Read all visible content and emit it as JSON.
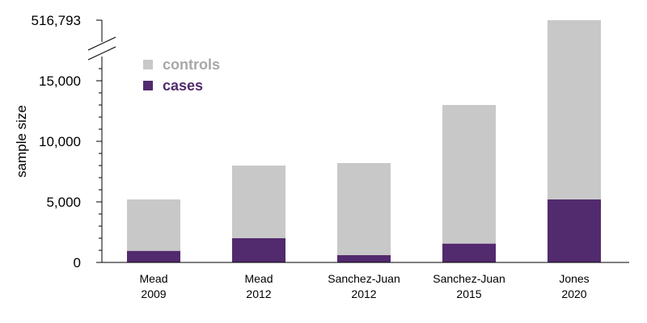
{
  "chart_data": {
    "type": "bar",
    "stacked": true,
    "title": "",
    "xlabel": "",
    "ylabel": "sample size",
    "ylim": [
      0,
      16500
    ],
    "axis_break": {
      "top_tick_value": 516793,
      "top_tick_label": "516,793"
    },
    "yticks": [
      {
        "value": 0,
        "label": "0"
      },
      {
        "value": 5000,
        "label": "5,000"
      },
      {
        "value": 10000,
        "label": "10,000"
      },
      {
        "value": 15000,
        "label": "15,000"
      }
    ],
    "categories": [
      {
        "line1": "Mead",
        "line2": "2009"
      },
      {
        "line1": "Mead",
        "line2": "2012"
      },
      {
        "line1": "Sanchez-Juan",
        "line2": "2012"
      },
      {
        "line1": "Sanchez-Juan",
        "line2": "2015"
      },
      {
        "line1": "Jones",
        "line2": "2020"
      }
    ],
    "series": [
      {
        "name": "cases",
        "color": "#522a6e",
        "values": [
          950,
          2000,
          600,
          1550,
          5200
        ]
      },
      {
        "name": "controls",
        "color": "#c8c8c8",
        "values": [
          4250,
          6000,
          7600,
          11450,
          511593
        ]
      }
    ],
    "legend": {
      "placement": "top-left",
      "order": [
        "controls",
        "cases"
      ]
    },
    "grid": false
  }
}
